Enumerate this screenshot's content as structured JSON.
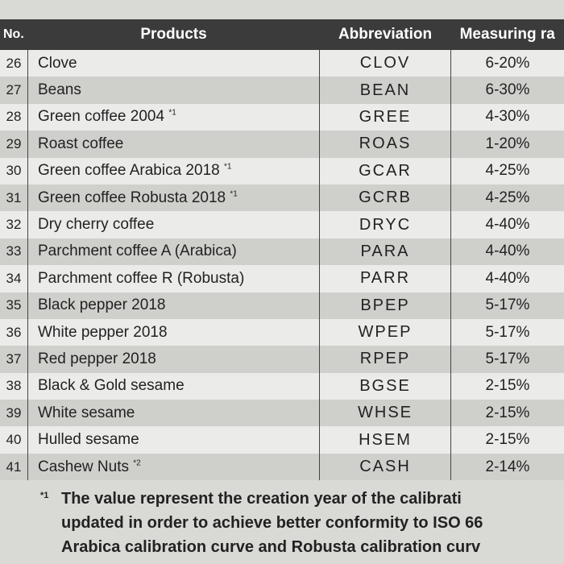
{
  "table": {
    "header": [
      "No.",
      "Products",
      "Abbreviation",
      "Measuring ra"
    ],
    "rows": [
      {
        "no": "26",
        "product": "Clove",
        "abbreviation": "CLOV",
        "range": "6-20%"
      },
      {
        "no": "27",
        "product": "Beans",
        "abbreviation": "BEAN",
        "range": "6-30%"
      },
      {
        "no": "28",
        "product": "Green coffee 2004",
        "note": "*1",
        "abbreviation": "GREE",
        "range": "4-30%"
      },
      {
        "no": "29",
        "product": "Roast coffee",
        "abbreviation": "ROAS",
        "range": "1-20%"
      },
      {
        "no": "30",
        "product": "Green coffee Arabica 2018",
        "note": "*1",
        "abbreviation": "GCAR",
        "range": "4-25%"
      },
      {
        "no": "31",
        "product": "Green coffee Robusta 2018",
        "note": "*1",
        "abbreviation": "GCRB",
        "range": "4-25%"
      },
      {
        "no": "32",
        "product": "Dry cherry coffee",
        "abbreviation": "DRYC",
        "range": "4-40%"
      },
      {
        "no": "33",
        "product": "Parchment coffee A (Arabica)",
        "abbreviation": "PARA",
        "range": "4-40%"
      },
      {
        "no": "34",
        "product": "Parchment coffee R (Robusta)",
        "abbreviation": "PARR",
        "range": "4-40%"
      },
      {
        "no": "35",
        "product": "Black pepper 2018",
        "abbreviation": "BPEP",
        "range": "5-17%"
      },
      {
        "no": "36",
        "product": "White pepper 2018",
        "abbreviation": "WPEP",
        "range": "5-17%"
      },
      {
        "no": "37",
        "product": "Red pepper 2018",
        "abbreviation": "RPEP",
        "range": "5-17%"
      },
      {
        "no": "38",
        "product": "Black & Gold sesame",
        "abbreviation": "BGSE",
        "range": "2-15%"
      },
      {
        "no": "39",
        "product": "White sesame",
        "abbreviation": "WHSE",
        "range": "2-15%"
      },
      {
        "no": "40",
        "product": "Hulled sesame",
        "abbreviation": "HSEM",
        "range": "2-15%"
      },
      {
        "no": "41",
        "product": "Cashew Nuts",
        "note": "*2",
        "abbreviation": "CASH",
        "range": "2-14%"
      }
    ]
  },
  "footnote": {
    "mark": "*1",
    "lines": [
      "The value represent the creation year of the calibrati",
      "updated in order to achieve better conformity to ISO 66",
      "Arabica calibration curve and Robusta calibration curv"
    ]
  }
}
